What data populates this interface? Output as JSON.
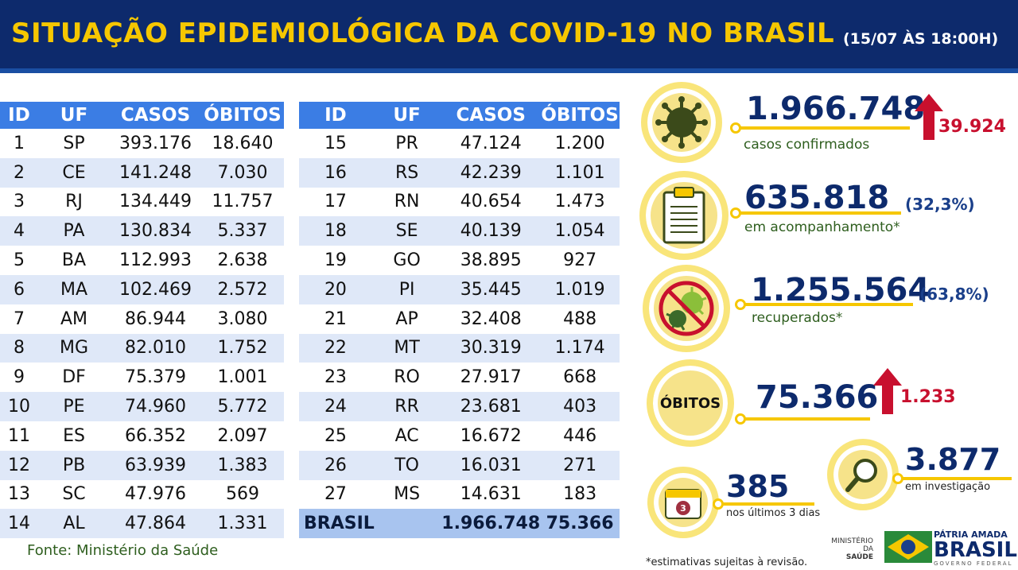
{
  "header": {
    "title": "SITUAÇÃO EPIDEMIOLÓGICA DA COVID-19 NO BRASIL",
    "date": "(15/07 ÀS 18:00H)"
  },
  "table_left": {
    "headers": [
      "ID",
      "UF",
      "CASOS",
      "ÓBITOS"
    ],
    "rows": [
      [
        "1",
        "SP",
        "393.176",
        "18.640"
      ],
      [
        "2",
        "CE",
        "141.248",
        "7.030"
      ],
      [
        "3",
        "RJ",
        "134.449",
        "11.757"
      ],
      [
        "4",
        "PA",
        "130.834",
        "5.337"
      ],
      [
        "5",
        "BA",
        "112.993",
        "2.638"
      ],
      [
        "6",
        "MA",
        "102.469",
        "2.572"
      ],
      [
        "7",
        "AM",
        "86.944",
        "3.080"
      ],
      [
        "8",
        "MG",
        "82.010",
        "1.752"
      ],
      [
        "9",
        "DF",
        "75.379",
        "1.001"
      ],
      [
        "10",
        "PE",
        "74.960",
        "5.772"
      ],
      [
        "11",
        "ES",
        "66.352",
        "2.097"
      ],
      [
        "12",
        "PB",
        "63.939",
        "1.383"
      ],
      [
        "13",
        "SC",
        "47.976",
        "569"
      ],
      [
        "14",
        "AL",
        "47.864",
        "1.331"
      ]
    ]
  },
  "table_right": {
    "headers": [
      "ID",
      "UF",
      "CASOS",
      "ÓBITOS"
    ],
    "rows": [
      [
        "15",
        "PR",
        "47.124",
        "1.200"
      ],
      [
        "16",
        "RS",
        "42.239",
        "1.101"
      ],
      [
        "17",
        "RN",
        "40.654",
        "1.473"
      ],
      [
        "18",
        "SE",
        "40.139",
        "1.054"
      ],
      [
        "19",
        "GO",
        "38.895",
        "927"
      ],
      [
        "20",
        "PI",
        "35.445",
        "1.019"
      ],
      [
        "21",
        "AP",
        "32.408",
        "488"
      ],
      [
        "22",
        "MT",
        "30.319",
        "1.174"
      ],
      [
        "23",
        "RO",
        "27.917",
        "668"
      ],
      [
        "24",
        "RR",
        "23.681",
        "403"
      ],
      [
        "25",
        "AC",
        "16.672",
        "446"
      ],
      [
        "26",
        "TO",
        "16.031",
        "271"
      ],
      [
        "27",
        "MS",
        "14.631",
        "183"
      ]
    ],
    "total": {
      "label": "BRASIL",
      "casos": "1.966.748",
      "obitos": "75.366"
    }
  },
  "source": "Fonte: Ministério da Saúde",
  "stats": {
    "confirmed": {
      "value": "1.966.748",
      "label": "casos confirmados",
      "increase": "39.924"
    },
    "monitoring": {
      "value": "635.818",
      "label": "em acompanhamento*",
      "percent": "(32,3%)"
    },
    "recovered": {
      "value": "1.255.564",
      "label": "recuperados*",
      "percent": "(63,8%)"
    },
    "deaths": {
      "circle_label": "ÓBITOS",
      "value": "75.366",
      "increase": "1.233"
    },
    "last3days": {
      "value": "385",
      "label": "nos últimos 3 dias",
      "calendar": "3"
    },
    "investigation": {
      "value": "3.877",
      "label": "em investigação"
    }
  },
  "footnote": "*estimativas sujeitas à revisão.",
  "logos": {
    "ministry_l1": "MINISTÉRIO DA",
    "ministry_l2": "SAÚDE",
    "brand_l1": "PÁTRIA AMADA",
    "brand_l2": "BRASIL",
    "brand_l3": "GOVERNO FEDERAL"
  },
  "colors": {
    "accent": "#f6c700",
    "navy": "#0d2a6c",
    "table_header": "#3b7de4",
    "increase": "#c8102e"
  }
}
